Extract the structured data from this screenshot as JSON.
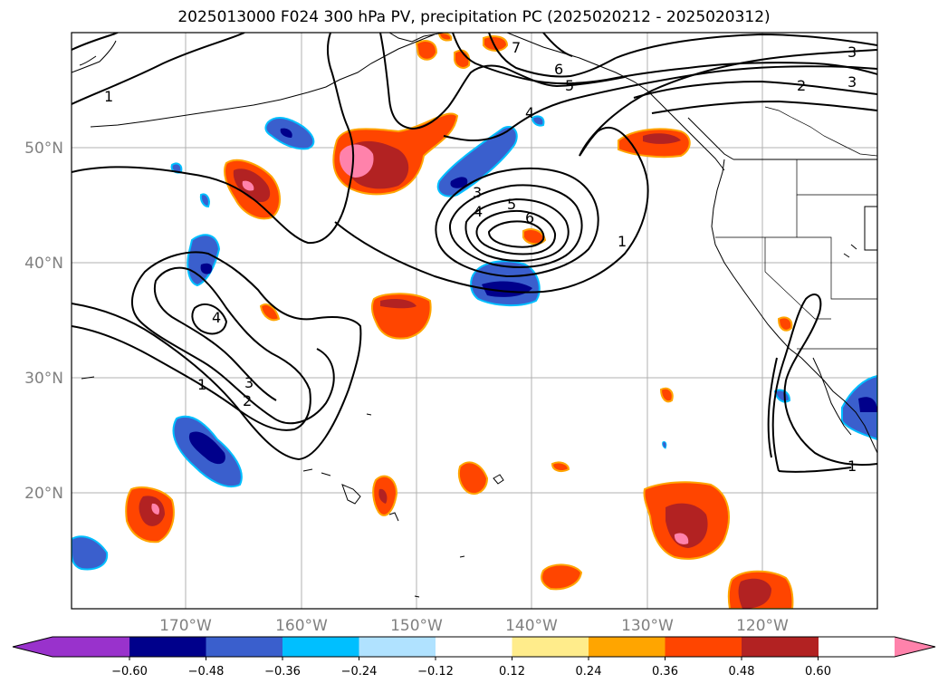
{
  "title": "2025013000 F024 300 hPa PV, precipitation PC (2025020212 - 2025020312)",
  "lat_labels": [
    "50°N",
    "40°N",
    "30°N",
    "20°N"
  ],
  "lon_labels": [
    "170°W",
    "160°W",
    "150°W",
    "140°W",
    "130°W",
    "120°W"
  ],
  "contour_labels": [
    "1",
    "2",
    "3",
    "4",
    "5",
    "6",
    "7"
  ],
  "colorbar": {
    "ticks": [
      "−0.60",
      "−0.48",
      "−0.36",
      "−0.24",
      "−0.12",
      "0.12",
      "0.24",
      "0.36",
      "0.48",
      "0.60"
    ],
    "colors": [
      "#9932cc",
      "#00008b",
      "#3a5fcd",
      "#00bfff",
      "#b0e2ff",
      "#ffffff",
      "#ffec8b",
      "#ffa500",
      "#ff4500",
      "#b22222",
      "#ff82ab"
    ]
  }
}
